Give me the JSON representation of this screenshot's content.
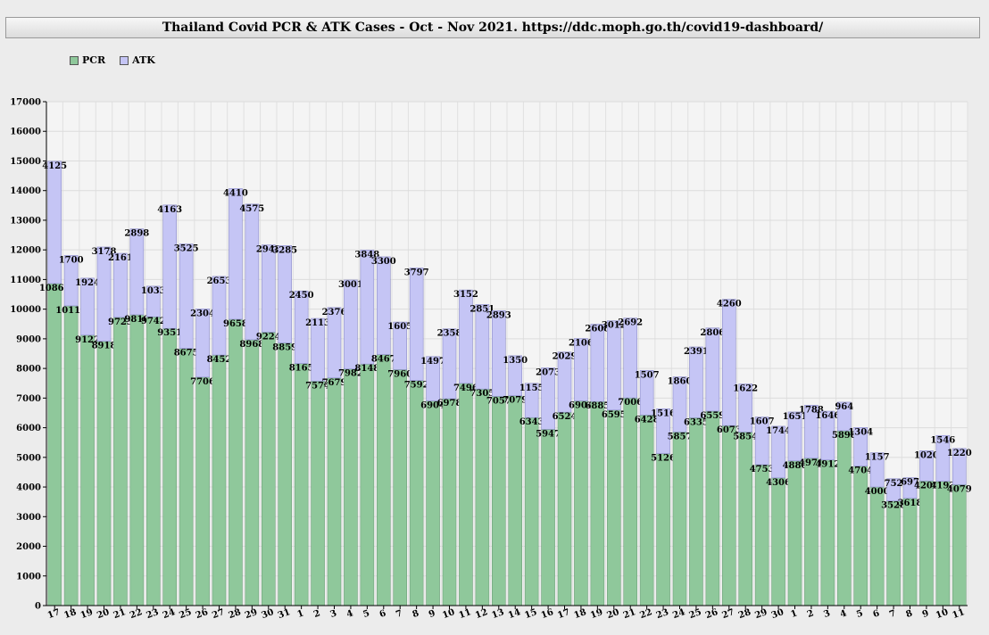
{
  "header": {
    "title": "Thailand Covid PCR & ATK Cases - Oct - Nov 2021. https://ddc.moph.go.th/covid19-dashboard/"
  },
  "colors": {
    "pcr": "#8fc89b",
    "atk": "#c5c5f5",
    "plot_bg": "#f4f4f4",
    "page_bg": "#ececec"
  },
  "chart_data": {
    "type": "bar",
    "stacked": true,
    "title": "Thailand Covid PCR & ATK Cases - Oct - Nov 2021. https://ddc.moph.go.th/covid19-dashboard/",
    "xlabel": "",
    "ylabel": "",
    "ylim": [
      0,
      17000
    ],
    "yticks": [
      0,
      1000,
      2000,
      3000,
      4000,
      5000,
      6000,
      7000,
      8000,
      9000,
      10000,
      11000,
      12000,
      13000,
      14000,
      15000,
      16000,
      17000
    ],
    "grid": true,
    "legend_position": "top-left",
    "categories": [
      "17",
      "18",
      "19",
      "20",
      "21",
      "22",
      "23",
      "24",
      "25",
      "26",
      "27",
      "28",
      "29",
      "30",
      "31",
      "1",
      "2",
      "3",
      "4",
      "5",
      "6",
      "7",
      "8",
      "9",
      "10",
      "11",
      "12",
      "13",
      "14",
      "15",
      "16",
      "17",
      "18",
      "19",
      "20",
      "21",
      "22",
      "23",
      "24",
      "25",
      "26",
      "27",
      "28",
      "29",
      "30",
      "1",
      "2",
      "3",
      "4",
      "5",
      "6",
      "7",
      "8",
      "9",
      "10",
      "11"
    ],
    "series": [
      {
        "name": "PCR",
        "values": [
          10863,
          10111,
          9122,
          8918,
          9723,
          9810,
          9742,
          9351,
          8675,
          7706,
          8452,
          9658,
          8968,
          9224,
          8859,
          8165,
          7574,
          7679,
          7982,
          8148,
          8467,
          7960,
          7592,
          6904,
          6978,
          7496,
          7305,
          7057,
          7079,
          6343,
          5947,
          6524,
          6904,
          6885,
          6595,
          7006,
          6428,
          5126,
          5857,
          6335,
          6559,
          6073,
          5854,
          4753,
          4306,
          4880,
          4971,
          4912,
          5898,
          4704,
          4000,
          3528,
          3618,
          4204,
          4193,
          4079
        ]
      },
      {
        "name": "ATK",
        "values": [
          4125,
          1700,
          1924,
          3178,
          2161,
          2898,
          1033,
          4163,
          3525,
          2304,
          2653,
          4410,
          4575,
          2943,
          3285,
          2450,
          2113,
          2376,
          3001,
          3848,
          3300,
          1605,
          3797,
          1497,
          2358,
          3152,
          2851,
          2893,
          1350,
          1155,
          2073,
          2029,
          2106,
          2608,
          3012,
          2692,
          1507,
          1516,
          1860,
          2391,
          2806,
          4260,
          1622,
          1607,
          1744,
          1651,
          1788,
          1646,
          964,
          1304,
          1157,
          752,
          697,
          1020,
          1546,
          1220
        ]
      }
    ]
  }
}
